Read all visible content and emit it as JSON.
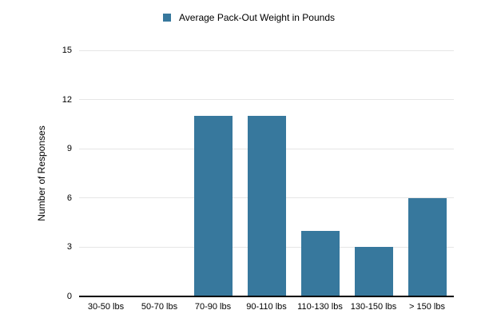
{
  "chart_data": {
    "type": "bar",
    "title": "",
    "categories": [
      "30-50 lbs",
      "50-70 lbs",
      "70-90 lbs",
      "90-110 lbs",
      "110-130 lbs",
      "130-150 lbs",
      "> 150 lbs"
    ],
    "series": [
      {
        "name": "Average Pack-Out Weight in Pounds",
        "values": [
          0,
          0,
          11,
          11,
          4,
          3,
          6
        ],
        "color": "#37789d"
      }
    ],
    "xlabel": "",
    "ylabel": "Number of Responses",
    "ylim": [
      0,
      15
    ],
    "yticks": [
      0,
      3,
      6,
      9,
      12,
      15
    ],
    "grid": true,
    "legend_position": "top",
    "gridline_color": "#e6e6e6",
    "axis_line_color": "#000000",
    "background_color": "#ffffff"
  }
}
